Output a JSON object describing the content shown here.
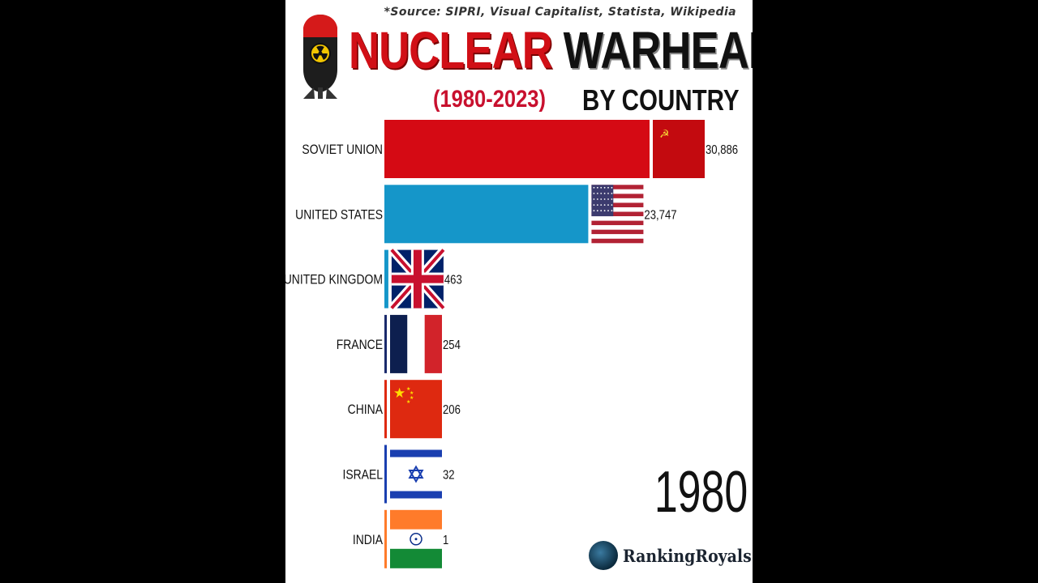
{
  "source": "*Source: SIPRI, Visual Capitalist, Statista, Wikipedia",
  "title": {
    "part1": "NUCLEAR",
    "part2": "WARHEADS",
    "years": "(1980-2023)",
    "subtitle": "BY COUNTRY"
  },
  "year": "1980",
  "brand": "RankingRoyals",
  "chart_data": {
    "type": "bar",
    "orientation": "horizontal",
    "categories": [
      "SOVIET UNION",
      "UNITED STATES",
      "UNITED KINGDOM",
      "FRANCE",
      "CHINA",
      "ISRAEL",
      "INDIA"
    ],
    "values": [
      30886,
      23747,
      463,
      254,
      206,
      32,
      1
    ],
    "value_labels": [
      "30,886",
      "23,747",
      "463",
      "254",
      "206",
      "32",
      "1"
    ],
    "bar_colors": [
      "#d50a14",
      "#1596c9",
      "#1596c9",
      "#1a2a6c",
      "#de2910",
      "#1a3fb0",
      "#ff7b2a"
    ],
    "flags": [
      "ussr-flag",
      "usa-flag",
      "uk-flag",
      "france-flag",
      "china-flag",
      "israel-flag",
      "india-flag"
    ],
    "grid": false,
    "legend": "none"
  }
}
